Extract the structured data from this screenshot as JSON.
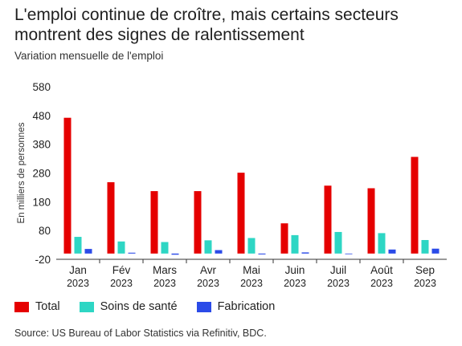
{
  "header": {
    "title": "L'emploi continue de croître, mais certains secteurs montrent des signes de ralentissement",
    "subtitle": "Variation mensuelle de l'emploi"
  },
  "footer": {
    "source": "Source: US Bureau of Labor Statistics via Refinitiv, BDC."
  },
  "colors": {
    "Total": "#e50000",
    "Soins de santé": "#2ed6c4",
    "Fabrication": "#2b4be8"
  },
  "chart_data": {
    "type": "bar",
    "title": "L'emploi continue de croître, mais certains secteurs montrent des signes de ralentissement",
    "subtitle": "Variation mensuelle de l'emploi",
    "xlabel": "",
    "ylabel": "En milliers de personnes",
    "ylim": [
      -20,
      580
    ],
    "yticks": [
      580,
      480,
      380,
      280,
      180,
      80,
      -20
    ],
    "categories": [
      "Jan",
      "Fév",
      "Mars",
      "Avr",
      "Mai",
      "Juin",
      "Juil",
      "Août",
      "Sep"
    ],
    "category_years": [
      "2023",
      "2023",
      "2023",
      "2023",
      "2023",
      "2023",
      "2023",
      "2023",
      "2023"
    ],
    "series": [
      {
        "name": "Total",
        "values": [
          472,
          248,
          217,
          217,
          281,
          105,
          236,
          227,
          336
        ]
      },
      {
        "name": "Soins de santé",
        "values": [
          58,
          42,
          40,
          46,
          54,
          64,
          75,
          71,
          47
        ]
      },
      {
        "name": "Fabrication",
        "values": [
          16,
          3,
          -4,
          12,
          -3,
          4,
          -1,
          14,
          17
        ]
      }
    ],
    "legend": "bottom-left",
    "grid": false
  }
}
